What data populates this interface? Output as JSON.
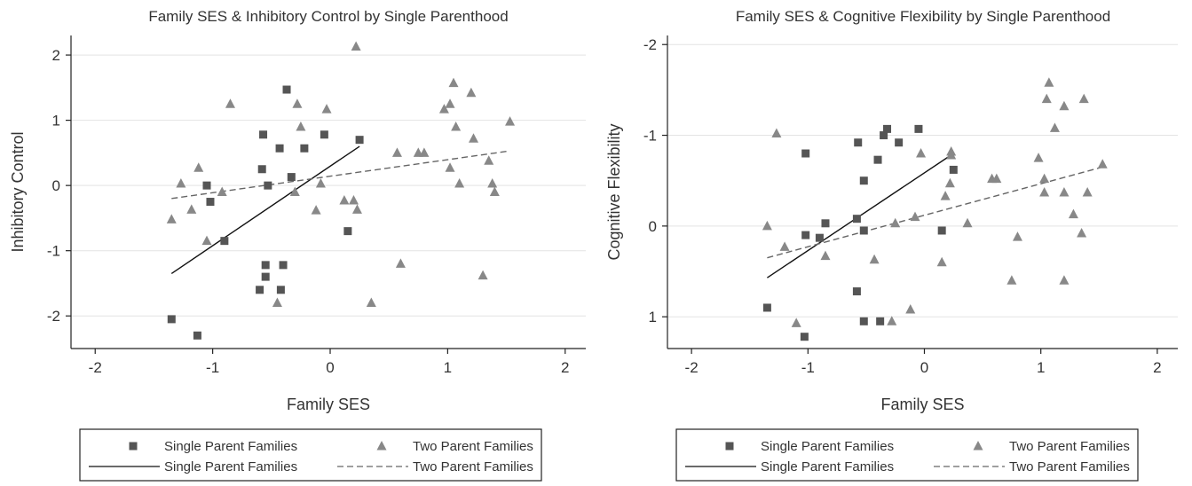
{
  "chart_data": [
    {
      "type": "scatter",
      "title": "Family SES & Inhibitory Control by Single Parenthood",
      "xlabel": "Family SES",
      "ylabel": "Inhibitory Control",
      "xlim": [
        -2.1,
        2.1
      ],
      "ylim": [
        -2.5,
        2.3
      ],
      "y_reversed": false,
      "xticks": [
        -2,
        -1,
        0,
        1,
        2
      ],
      "yticks": [
        -2,
        -1,
        0,
        1,
        2
      ],
      "tick_labels_x": [
        "-2",
        "-1",
        "0",
        "1",
        "2"
      ],
      "tick_labels_y": [
        "-2",
        "-1",
        "0",
        "1",
        "2"
      ],
      "grid": "horizontal",
      "legend_position": "bottom",
      "legend": {
        "entries": [
          {
            "label": "Single Parent Families",
            "symbol": "square"
          },
          {
            "label": "Two Parent Families",
            "symbol": "triangle"
          },
          {
            "label": "Single Parent Families",
            "symbol": "solid-line"
          },
          {
            "label": "Two Parent Families",
            "symbol": "dashed-line"
          }
        ]
      },
      "series": [
        {
          "name": "Single Parent Families",
          "marker": "square",
          "color": "#555555",
          "points": [
            [
              -1.35,
              -2.05
            ],
            [
              -1.13,
              -2.3
            ],
            [
              -1.05,
              0.0
            ],
            [
              -1.02,
              -0.25
            ],
            [
              -0.9,
              -0.85
            ],
            [
              -0.57,
              0.78
            ],
            [
              -0.58,
              0.25
            ],
            [
              -0.53,
              0.0
            ],
            [
              -0.55,
              -1.22
            ],
            [
              -0.55,
              -1.4
            ],
            [
              -0.6,
              -1.6
            ],
            [
              -0.43,
              0.57
            ],
            [
              -0.42,
              -1.6
            ],
            [
              -0.4,
              -1.22
            ],
            [
              -0.37,
              1.47
            ],
            [
              -0.33,
              0.13
            ],
            [
              -0.22,
              0.57
            ],
            [
              -0.05,
              0.78
            ],
            [
              0.15,
              -0.7
            ],
            [
              0.25,
              0.7
            ]
          ]
        },
        {
          "name": "Two Parent Families",
          "marker": "triangle",
          "color": "#888888",
          "points": [
            [
              -1.35,
              -0.52
            ],
            [
              -1.27,
              0.03
            ],
            [
              -1.18,
              -0.37
            ],
            [
              -1.12,
              0.27
            ],
            [
              -1.05,
              -0.85
            ],
            [
              -0.92,
              -0.1
            ],
            [
              -0.85,
              1.25
            ],
            [
              -0.45,
              -1.8
            ],
            [
              -0.3,
              -0.1
            ],
            [
              -0.28,
              1.25
            ],
            [
              -0.25,
              0.9
            ],
            [
              -0.12,
              -0.38
            ],
            [
              -0.08,
              0.03
            ],
            [
              -0.03,
              1.17
            ],
            [
              0.12,
              -0.23
            ],
            [
              0.2,
              -0.23
            ],
            [
              0.22,
              2.13
            ],
            [
              0.23,
              -0.37
            ],
            [
              0.35,
              -1.8
            ],
            [
              0.57,
              0.5
            ],
            [
              0.6,
              -1.2
            ],
            [
              0.75,
              0.5
            ],
            [
              0.8,
              0.5
            ],
            [
              0.97,
              1.17
            ],
            [
              1.02,
              0.27
            ],
            [
              1.02,
              1.25
            ],
            [
              1.05,
              1.57
            ],
            [
              1.07,
              0.9
            ],
            [
              1.1,
              0.03
            ],
            [
              1.2,
              1.42
            ],
            [
              1.22,
              0.72
            ],
            [
              1.3,
              -1.38
            ],
            [
              1.35,
              0.38
            ],
            [
              1.38,
              0.03
            ],
            [
              1.4,
              -0.1
            ],
            [
              1.53,
              0.98
            ]
          ]
        }
      ],
      "fit_lines": [
        {
          "name": "Single Parent Families",
          "style": "solid",
          "x": [
            -1.35,
            0.25
          ],
          "y": [
            -1.35,
            0.6
          ]
        },
        {
          "name": "Two Parent Families",
          "style": "dashed",
          "x": [
            -1.35,
            1.53
          ],
          "y": [
            -0.2,
            0.53
          ]
        }
      ]
    },
    {
      "type": "scatter",
      "title": "Family SES & Cognitive Flexibility by Single Parenthood",
      "xlabel": "Family SES",
      "ylabel": "Cognitive Flexibility",
      "xlim": [
        -2.1,
        2.1
      ],
      "ylim": [
        -2.1,
        1.35
      ],
      "y_reversed": true,
      "xticks": [
        -2,
        -1,
        0,
        1,
        2
      ],
      "yticks": [
        -2,
        -1,
        0,
        1
      ],
      "tick_labels_x": [
        "-2",
        "-1",
        "0",
        "1",
        "2"
      ],
      "tick_labels_y": [
        "-2",
        "-1",
        "0",
        "1"
      ],
      "grid": "horizontal",
      "legend_position": "bottom",
      "legend": {
        "entries": [
          {
            "label": "Single Parent Families",
            "symbol": "square"
          },
          {
            "label": "Two Parent Families",
            "symbol": "triangle"
          },
          {
            "label": "Single Parent Families",
            "symbol": "solid-line"
          },
          {
            "label": "Two Parent Families",
            "symbol": "dashed-line"
          }
        ]
      },
      "series": [
        {
          "name": "Single Parent Families",
          "marker": "square",
          "color": "#555555",
          "points": [
            [
              -1.35,
              0.9
            ],
            [
              -1.03,
              1.22
            ],
            [
              -1.02,
              0.1
            ],
            [
              -1.02,
              -0.8
            ],
            [
              -0.9,
              0.13
            ],
            [
              -0.85,
              -0.03
            ],
            [
              -0.58,
              0.72
            ],
            [
              -0.58,
              -0.08
            ],
            [
              -0.57,
              -0.92
            ],
            [
              -0.52,
              0.05
            ],
            [
              -0.52,
              -0.5
            ],
            [
              -0.52,
              1.05
            ],
            [
              -0.4,
              -0.73
            ],
            [
              -0.38,
              1.05
            ],
            [
              -0.35,
              -1.0
            ],
            [
              -0.32,
              -1.07
            ],
            [
              -0.22,
              -0.92
            ],
            [
              -0.05,
              -1.07
            ],
            [
              0.15,
              0.05
            ],
            [
              0.25,
              -0.62
            ]
          ]
        },
        {
          "name": "Two Parent Families",
          "marker": "triangle",
          "color": "#888888",
          "points": [
            [
              -1.35,
              0.0
            ],
            [
              -1.27,
              -1.02
            ],
            [
              -1.2,
              0.23
            ],
            [
              -1.1,
              1.07
            ],
            [
              -0.85,
              0.33
            ],
            [
              -0.43,
              0.37
            ],
            [
              -0.28,
              1.05
            ],
            [
              -0.25,
              -0.03
            ],
            [
              -0.12,
              0.92
            ],
            [
              -0.08,
              -0.1
            ],
            [
              -0.03,
              -0.8
            ],
            [
              0.15,
              0.4
            ],
            [
              0.18,
              -0.33
            ],
            [
              0.22,
              -0.47
            ],
            [
              0.23,
              -0.78
            ],
            [
              0.23,
              -0.82
            ],
            [
              0.37,
              -0.03
            ],
            [
              0.58,
              -0.52
            ],
            [
              0.62,
              -0.52
            ],
            [
              0.75,
              0.6
            ],
            [
              0.8,
              0.12
            ],
            [
              0.98,
              -0.75
            ],
            [
              1.03,
              -0.37
            ],
            [
              1.03,
              -0.52
            ],
            [
              1.05,
              -1.4
            ],
            [
              1.07,
              -1.58
            ],
            [
              1.12,
              -1.08
            ],
            [
              1.2,
              -0.37
            ],
            [
              1.2,
              -1.32
            ],
            [
              1.2,
              0.6
            ],
            [
              1.28,
              -0.13
            ],
            [
              1.35,
              0.08
            ],
            [
              1.37,
              -1.4
            ],
            [
              1.4,
              -0.37
            ],
            [
              1.53,
              -0.68
            ]
          ]
        }
      ],
      "fit_lines": [
        {
          "name": "Single Parent Families",
          "style": "solid",
          "x": [
            -1.35,
            0.25
          ],
          "y": [
            0.57,
            -0.8
          ]
        },
        {
          "name": "Two Parent Families",
          "style": "dashed",
          "x": [
            -1.35,
            1.53
          ],
          "y": [
            0.35,
            -0.65
          ]
        }
      ]
    }
  ]
}
